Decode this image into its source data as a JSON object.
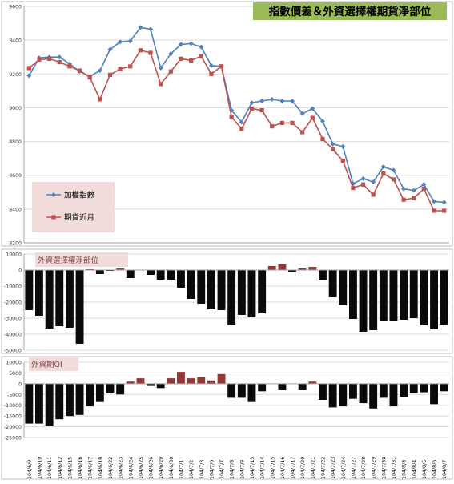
{
  "chart_data": [
    {
      "type": "line",
      "title": "指數價差＆外資選擇權期貨淨部位",
      "ylim": [
        8200,
        9600
      ],
      "yticks": [
        8200,
        8400,
        8600,
        8800,
        9000,
        9200,
        9400,
        9600
      ],
      "grid": true,
      "legend_position": "left",
      "series": [
        {
          "name": "加權指數",
          "color": "#4f81bd",
          "marker": "diamond",
          "values": [
            9190,
            9295,
            9300,
            9300,
            9260,
            9215,
            9185,
            9220,
            9345,
            9390,
            9395,
            9475,
            9465,
            9235,
            9320,
            9375,
            9380,
            9360,
            9250,
            9245,
            8985,
            8915,
            9030,
            9040,
            9050,
            9040,
            9040,
            8965,
            8995,
            8920,
            8785,
            8770,
            8550,
            8580,
            8560,
            8650,
            8630,
            8520,
            8510,
            8545,
            8445,
            8440
          ]
        },
        {
          "name": "期貨近月",
          "color": "#c0504d",
          "marker": "square",
          "values": [
            9235,
            9285,
            9290,
            9270,
            9245,
            9220,
            9180,
            9050,
            9195,
            9230,
            9245,
            9340,
            9325,
            9140,
            9215,
            9290,
            9280,
            9305,
            9200,
            9245,
            8945,
            8875,
            8995,
            8985,
            8890,
            8910,
            8910,
            8855,
            8940,
            8815,
            8755,
            8685,
            8525,
            8545,
            8485,
            8610,
            8575,
            8455,
            8465,
            8520,
            8390,
            8390
          ]
        }
      ]
    },
    {
      "type": "bar",
      "title": "外資選擇權淨部位",
      "ylim": [
        -50000,
        10000
      ],
      "yticks": [
        -50000,
        -40000,
        -30000,
        -20000,
        -10000,
        0,
        10000
      ],
      "grid": true,
      "bar_colors": {
        "positive": "#953735",
        "negative": "#0a0a0a"
      },
      "values": [
        -25000,
        -28500,
        -36500,
        -35000,
        -36000,
        -46000,
        500,
        -2500,
        -500,
        1000,
        -5000,
        0,
        -3000,
        -6000,
        -6000,
        -11000,
        -18000,
        -21000,
        -24500,
        -25000,
        -34500,
        -28000,
        -29500,
        -27000,
        2500,
        3500,
        -1000,
        1000,
        2000,
        -6500,
        -17000,
        -22000,
        -30500,
        -38500,
        -37500,
        -31500,
        -31500,
        -31000,
        -30000,
        -34500,
        -37000,
        -34000
      ]
    },
    {
      "type": "bar",
      "title": "外資期OI",
      "ylim": [
        -25000,
        10000
      ],
      "yticks": [
        -25000,
        -20000,
        -15000,
        -10000,
        -5000,
        0,
        5000,
        10000
      ],
      "grid": true,
      "bar_colors": {
        "positive": "#953735",
        "negative": "#0a0a0a"
      },
      "values": [
        -18500,
        -18500,
        -19500,
        -16500,
        -15000,
        -14500,
        -10500,
        -8500,
        -4500,
        -5000,
        1000,
        2500,
        -1000,
        -2000,
        2500,
        5500,
        2500,
        3000,
        1500,
        4500,
        -6500,
        -6500,
        -8500,
        -3500,
        0,
        -3000,
        0,
        -3000,
        1000,
        -7500,
        -11000,
        -10500,
        -7000,
        -9000,
        -11500,
        -6500,
        -10500,
        -6000,
        -4500,
        -4000,
        -9500,
        -3500
      ]
    }
  ],
  "x_labels": [
    "104/6/9",
    "104/6/10",
    "104/6/11",
    "104/6/12",
    "104/6/15",
    "104/6/16",
    "104/6/17",
    "104/6/18",
    "104/6/22",
    "104/6/23",
    "104/6/24",
    "104/6/25",
    "104/6/26",
    "104/6/29",
    "104/6/30",
    "104/7/1",
    "104/7/2",
    "104/7/3",
    "104/7/6",
    "104/7/7",
    "104/7/8",
    "104/7/9",
    "104/7/13",
    "104/7/14",
    "104/7/15",
    "104/7/16",
    "104/7/17",
    "104/7/20",
    "104/7/21",
    "104/7/22",
    "104/7/23",
    "104/7/24",
    "104/7/27",
    "104/7/28",
    "104/7/29",
    "104/7/30",
    "104/7/31",
    "104/8/3",
    "104/8/4",
    "104/8/5",
    "104/8/6",
    "104/8/7"
  ]
}
